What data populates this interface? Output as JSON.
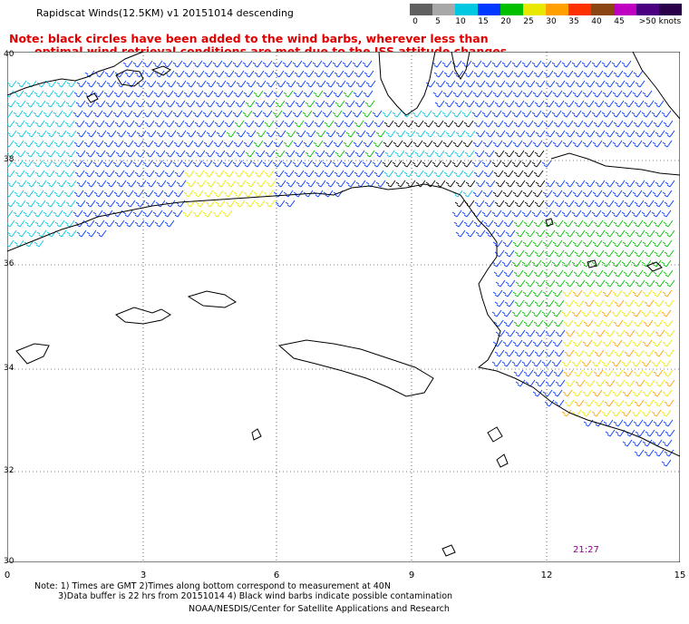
{
  "title": "Rapidscat Winds(12.5KM) v1 20151014 descending",
  "note": {
    "line1": "Note: black circles have been added to the wind barbs, wherever less than",
    "line2": "optimal wind retrieval conditions are met due to the ISS attitude changes."
  },
  "colorbar": {
    "labels": [
      "0",
      "5",
      "10",
      "15",
      "20",
      "25",
      "30",
      "35",
      "40",
      "45",
      ">50 knots"
    ],
    "colors": [
      "#606060",
      "#a8a8a8",
      "#00c8e0",
      "#0038ff",
      "#00c000",
      "#e8e800",
      "#ffa000",
      "#ff3000",
      "#8b4513",
      "#c000c0",
      "#4b0082",
      "#2a004a"
    ]
  },
  "axes": {
    "lat_labels": [
      "40",
      "38",
      "36",
      "34",
      "32",
      "30"
    ],
    "lon_labels": [
      "0",
      "3",
      "6",
      "9",
      "12",
      "15"
    ]
  },
  "time_label": "21:27",
  "footnote": {
    "line1": "Note: 1) Times are GMT 2)Times along bottom correspond to measurement at 40N",
    "line2": "3)Data buffer is 22 hrs from 20151014 4) Black wind barbs indicate possible contamination"
  },
  "credit": "NOAA/NESDIS/Center for Satellite Applications and Research",
  "barb_colors": [
    "#00c8e0",
    "#0038ff",
    "#00c000",
    "#e8e800",
    "#ffa000",
    "#000000"
  ]
}
